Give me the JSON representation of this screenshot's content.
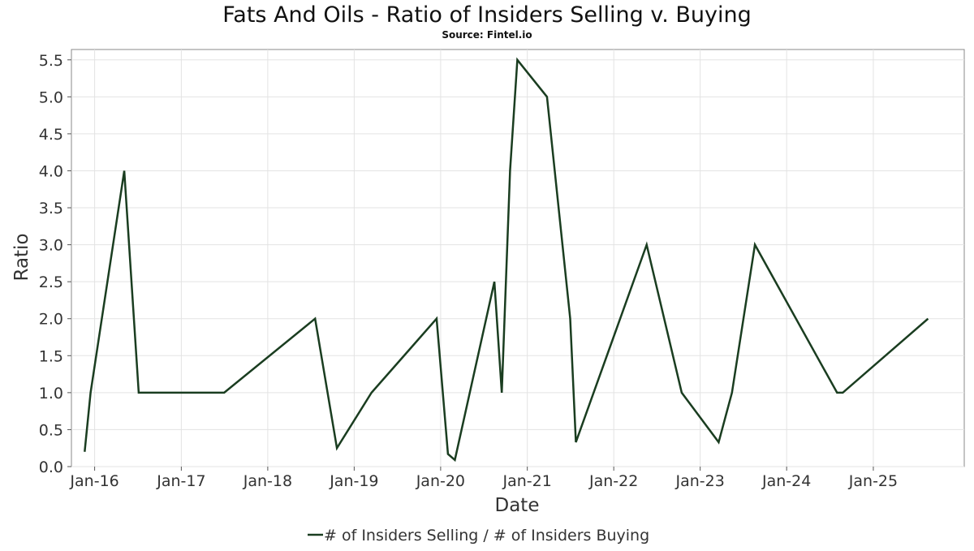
{
  "chart_data": {
    "type": "line",
    "title": "Fats And Oils - Ratio of Insiders Selling v. Buying",
    "subtitle": "Source: Fintel.io",
    "xlabel": "Date",
    "ylabel": "Ratio",
    "ylim": [
      0,
      5.64
    ],
    "xlim": [
      "2015-09-25",
      "2026-01-20"
    ],
    "yticks": [
      0.0,
      0.5,
      1.0,
      1.5,
      2.0,
      2.5,
      3.0,
      3.5,
      4.0,
      4.5,
      5.0,
      5.5
    ],
    "ytick_labels": [
      "0.0",
      "0.5",
      "1.0",
      "1.5",
      "2.0",
      "2.5",
      "3.0",
      "3.5",
      "4.0",
      "4.5",
      "5.0",
      "5.5"
    ],
    "xticks": [
      "2016-01-01",
      "2017-01-01",
      "2018-01-01",
      "2019-01-01",
      "2020-01-01",
      "2021-01-01",
      "2022-01-01",
      "2023-01-01",
      "2024-01-01",
      "2025-01-01"
    ],
    "xtick_labels": [
      "Jan-16",
      "Jan-17",
      "Jan-18",
      "Jan-19",
      "Jan-20",
      "Jan-21",
      "Jan-22",
      "Jan-23",
      "Jan-24",
      "Jan-25"
    ],
    "grid": true,
    "legend_position": "bottom-center",
    "series": [
      {
        "name": "# of Insiders Selling / # of Insiders Buying",
        "color": "#1a3d20",
        "points": [
          [
            "2015-11-20",
            0.2
          ],
          [
            "2015-12-15",
            1.0
          ],
          [
            "2016-05-05",
            4.0
          ],
          [
            "2016-07-05",
            1.0
          ],
          [
            "2017-07-01",
            1.0
          ],
          [
            "2018-07-20",
            2.0
          ],
          [
            "2018-10-20",
            0.25
          ],
          [
            "2019-03-15",
            1.0
          ],
          [
            "2019-12-15",
            2.0
          ],
          [
            "2020-02-01",
            0.17
          ],
          [
            "2020-03-01",
            0.09
          ],
          [
            "2020-08-15",
            2.5
          ],
          [
            "2020-09-15",
            1.0
          ],
          [
            "2020-10-20",
            4.0
          ],
          [
            "2020-11-20",
            5.5
          ],
          [
            "2021-03-25",
            5.0
          ],
          [
            "2021-07-01",
            2.0
          ],
          [
            "2021-07-25",
            0.33
          ],
          [
            "2022-05-20",
            3.0
          ],
          [
            "2022-10-15",
            1.0
          ],
          [
            "2023-03-20",
            0.33
          ],
          [
            "2023-05-15",
            1.0
          ],
          [
            "2023-08-20",
            3.0
          ],
          [
            "2024-08-01",
            1.0
          ],
          [
            "2024-08-25",
            1.0
          ],
          [
            "2025-08-20",
            2.0
          ]
        ]
      }
    ]
  }
}
